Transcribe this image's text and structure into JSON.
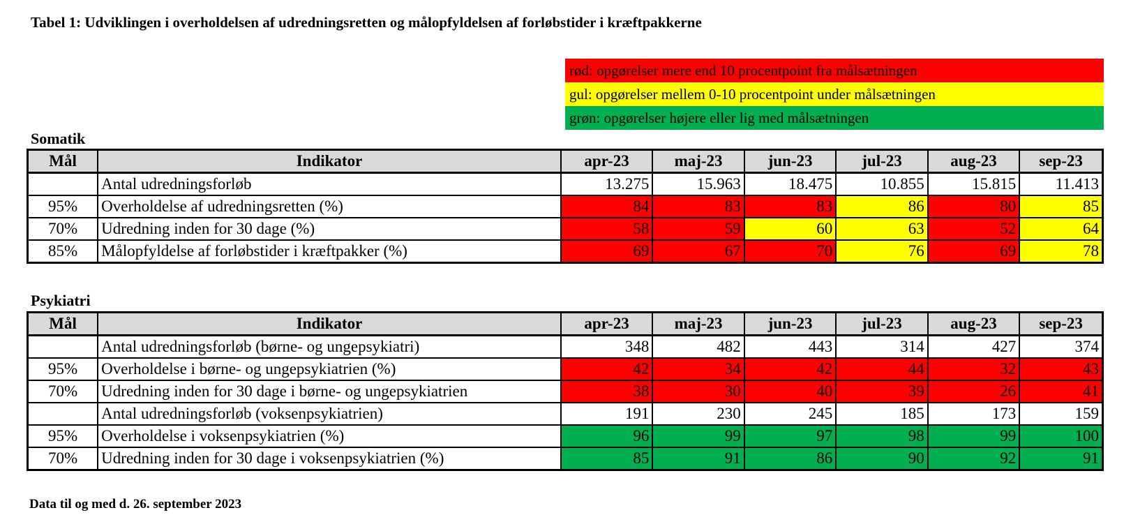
{
  "title": "Tabel 1: Udviklingen i overholdelsen af udredningsretten og målopfyldelsen af forløbstider i kræftpakkerne",
  "legend": [
    {
      "text": "rød: opgørelser mere end 10 procentpoint fra målsætningen",
      "color": "#ff0000"
    },
    {
      "text": "gul: opgørelser mellem 0-10 procentpoint under målsætningen",
      "color": "#ffff00"
    },
    {
      "text": "grøn: opgørelser højere eller lig med målsætningen",
      "color": "#00b050"
    }
  ],
  "headers": {
    "goal": "Mål",
    "indicator": "Indikator",
    "months": [
      "apr-23",
      "maj-23",
      "jun-23",
      "jul-23",
      "aug-23",
      "sep-23"
    ]
  },
  "somatik": {
    "title": "Somatik",
    "rows": [
      {
        "goal": "",
        "indicator": "Antal udredningsforløb",
        "values": [
          "13.275",
          "15.963",
          "18.475",
          "10.855",
          "15.815",
          "11.413"
        ],
        "colors": [
          "",
          "",
          "",
          "",
          "",
          ""
        ]
      },
      {
        "goal": "95%",
        "indicator": "Overholdelse af udredningsretten (%)",
        "values": [
          "84",
          "83",
          "83",
          "86",
          "80",
          "85"
        ],
        "colors": [
          "red",
          "red",
          "red",
          "yellow",
          "red",
          "yellow"
        ]
      },
      {
        "goal": "70%",
        "indicator": "Udredning inden for 30 dage (%)",
        "values": [
          "58",
          "59",
          "60",
          "63",
          "52",
          "64"
        ],
        "colors": [
          "red",
          "red",
          "yellow",
          "yellow",
          "red",
          "yellow"
        ]
      },
      {
        "goal": "85%",
        "indicator": "Målopfyldelse af forløbstider i kræftpakker (%)",
        "values": [
          "69",
          "67",
          "70",
          "76",
          "69",
          "78"
        ],
        "colors": [
          "red",
          "red",
          "red",
          "yellow",
          "red",
          "yellow"
        ]
      }
    ]
  },
  "psykiatri": {
    "title": "Psykiatri",
    "rows": [
      {
        "goal": "",
        "indicator": "Antal udredningsforløb (børne- og ungepsykiatri)",
        "values": [
          "348",
          "482",
          "443",
          "314",
          "427",
          "374"
        ],
        "colors": [
          "",
          "",
          "",
          "",
          "",
          ""
        ]
      },
      {
        "goal": "95%",
        "indicator": "Overholdelse i børne- og ungepsykiatrien (%)",
        "values": [
          "42",
          "34",
          "42",
          "44",
          "32",
          "43"
        ],
        "colors": [
          "red",
          "red",
          "red",
          "red",
          "red",
          "red"
        ]
      },
      {
        "goal": "70%",
        "indicator": "Udredning inden for 30 dage i børne- og ungepsykiatrien",
        "values": [
          "38",
          "30",
          "40",
          "39",
          "26",
          "41"
        ],
        "colors": [
          "red",
          "red",
          "red",
          "red",
          "red",
          "red"
        ]
      },
      {
        "goal": "",
        "indicator": "Antal udredningsforløb (voksenpsykiatrien)",
        "values": [
          "191",
          "230",
          "245",
          "185",
          "173",
          "159"
        ],
        "colors": [
          "",
          "",
          "",
          "",
          "",
          ""
        ]
      },
      {
        "goal": "95%",
        "indicator": "Overholdelse i voksenpsykiatrien (%)",
        "values": [
          "96",
          "99",
          "97",
          "98",
          "99",
          "100"
        ],
        "colors": [
          "green",
          "green",
          "green",
          "green",
          "green",
          "green"
        ]
      },
      {
        "goal": "70%",
        "indicator": "Udredning inden for 30 dage i voksenpsykiatrien (%)",
        "values": [
          "85",
          "91",
          "86",
          "90",
          "92",
          "91"
        ],
        "colors": [
          "green",
          "green",
          "green",
          "green",
          "green",
          "green"
        ]
      }
    ]
  },
  "footer": "Data til og med d. 26. september 2023"
}
